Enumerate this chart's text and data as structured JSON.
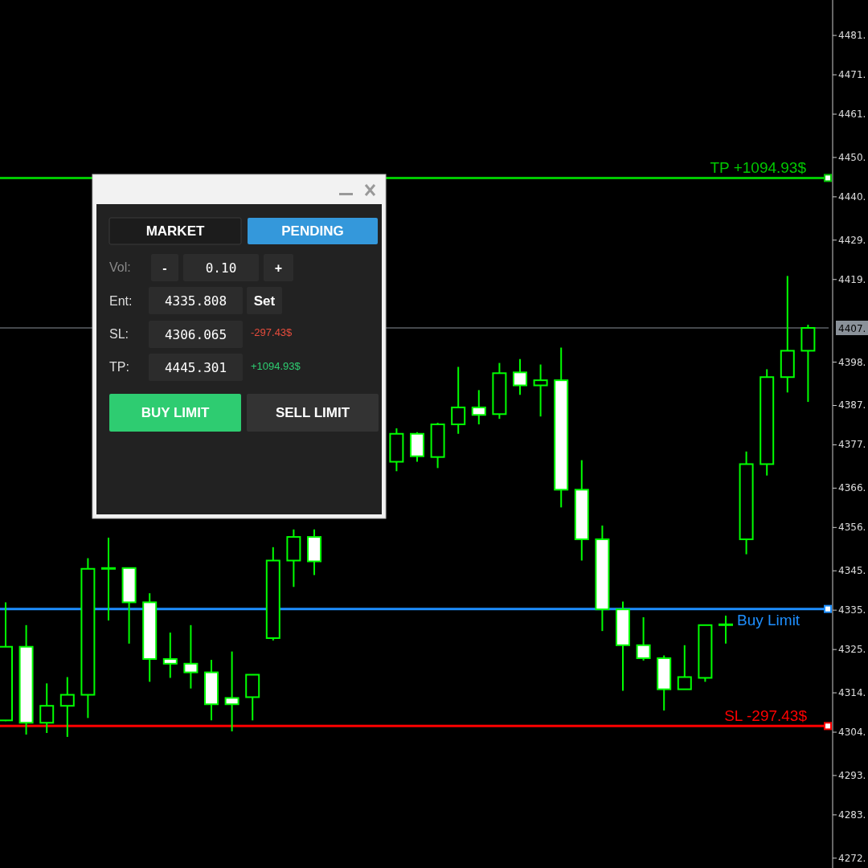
{
  "chart_data": [
    {
      "type": "candlestick",
      "categories": [
        null,
        null,
        null,
        null,
        null,
        null,
        null,
        null,
        null,
        null,
        null,
        null,
        null,
        null,
        null,
        null,
        null,
        null,
        null,
        null,
        null,
        null,
        null,
        null,
        null,
        null,
        null,
        null,
        null,
        null,
        null,
        null,
        null,
        null,
        null,
        null,
        null,
        null,
        null,
        null
      ],
      "ohlc": [
        [
          4307.5,
          4337.5,
          4307.3,
          4326.2
        ],
        [
          4326.2,
          4331.7,
          4303.9,
          4306.9
        ],
        [
          4306.9,
          4316.9,
          4304.3,
          4311.2
        ],
        [
          4311.2,
          4318.5,
          4303.3,
          4314.0
        ],
        [
          4314.0,
          4348.7,
          4308.1,
          4346.0
        ],
        [
          4346.0,
          4353.9,
          4332.9,
          4346.2
        ],
        [
          4346.2,
          4346.2,
          4327.0,
          4337.5
        ],
        [
          4337.5,
          4339.8,
          4317.3,
          4323.1
        ],
        [
          4323.1,
          4329.8,
          4318.3,
          4321.9
        ],
        [
          4321.9,
          4331.7,
          4315.6,
          4319.7
        ],
        [
          4319.7,
          4322.9,
          4307.5,
          4311.6
        ],
        [
          4313.2,
          4325.0,
          4304.7,
          4311.6
        ],
        [
          4313.4,
          4319.1,
          4307.5,
          4319.1
        ],
        [
          4328.4,
          4351.5,
          4327.8,
          4348.1
        ],
        [
          4348.1,
          4356.0,
          4341.4,
          4354.1
        ],
        [
          4354.1,
          4356.0,
          4344.4,
          4347.9
        ],
        null,
        null,
        null,
        [
          4373.2,
          4381.7,
          4370.8,
          4380.3
        ],
        [
          4380.3,
          4380.7,
          4373.2,
          4374.6
        ],
        [
          4374.4,
          4383.1,
          4371.6,
          4382.7
        ],
        [
          4382.7,
          4397.3,
          4380.3,
          4387.0
        ],
        [
          4387.0,
          4391.4,
          4382.7,
          4385.1
        ],
        [
          4385.3,
          4398.3,
          4384.1,
          4395.7
        ],
        [
          4395.9,
          4399.3,
          4390.2,
          4392.6
        ],
        [
          4392.6,
          4397.9,
          4384.7,
          4393.9
        ],
        [
          4393.9,
          4402.2,
          4361.6,
          4366.1
        ],
        [
          4366.1,
          4373.6,
          4348.1,
          4353.5
        ],
        [
          4353.5,
          4357.0,
          4330.2,
          4335.7
        ],
        [
          4335.7,
          4337.7,
          4315.0,
          4326.6
        ],
        [
          4326.6,
          4333.7,
          4322.7,
          4323.3
        ],
        [
          4323.3,
          4324.0,
          4310.0,
          4315.4
        ],
        [
          4315.4,
          4326.6,
          4315.4,
          4318.5
        ],
        [
          4318.3,
          4331.7,
          4317.3,
          4331.7
        ],
        [
          4331.7,
          4334.1,
          4327.0,
          4331.9
        ],
        [
          4353.5,
          4375.8,
          4349.7,
          4372.6
        ],
        [
          4372.6,
          4396.7,
          4369.7,
          4394.7
        ],
        [
          4394.7,
          4420.4,
          4390.8,
          4401.4
        ],
        [
          4401.4,
          4408.0,
          4388.4,
          4407.2
        ]
      ],
      "color": "#00ff00",
      "ylim": [
        4270.0,
        4490.5
      ],
      "yticks": [
        {
          "value": 4481.5,
          "label": "4481."
        },
        {
          "value": 4471.5,
          "label": "4471."
        },
        {
          "value": 4461.5,
          "label": "4461."
        },
        {
          "value": 4450.5,
          "label": "4450."
        },
        {
          "value": 4440.5,
          "label": "4440."
        },
        {
          "value": 4429.5,
          "label": "4429."
        },
        {
          "value": 4419.5,
          "label": "4419."
        },
        {
          "value": 4398.5,
          "label": "4398."
        },
        {
          "value": 4387.5,
          "label": "4387."
        },
        {
          "value": 4377.5,
          "label": "4377."
        },
        {
          "value": 4366.5,
          "label": "4366."
        },
        {
          "value": 4356.5,
          "label": "4356."
        },
        {
          "value": 4345.5,
          "label": "4345."
        },
        {
          "value": 4335.5,
          "label": "4335."
        },
        {
          "value": 4325.5,
          "label": "4325."
        },
        {
          "value": 4314.5,
          "label": "4314."
        },
        {
          "value": 4304.5,
          "label": "4304."
        },
        {
          "value": 4293.5,
          "label": "4293."
        },
        {
          "value": 4283.5,
          "label": "4283."
        },
        {
          "value": 4272.5,
          "label": "4272."
        }
      ],
      "tick_labels": "y",
      "grid": false,
      "ref_lines": [
        {
          "axis": "y",
          "value": 4445.301,
          "label": "TP +1094.93$",
          "color": "#00c800"
        },
        {
          "axis": "y",
          "value": 4407.2,
          "label": "4407.",
          "color": "#8a9199"
        },
        {
          "axis": "y",
          "value": 4335.808,
          "label": "Buy Limit",
          "color": "#1e8fff"
        },
        {
          "axis": "y",
          "value": 4306.065,
          "label": "SL -297.43$",
          "color": "#ff0000"
        }
      ]
    },
    {
      "type": "other",
      "annotations": [
        "MARKET",
        "PENDING",
        "Vol:",
        "-",
        "0.10",
        "+",
        "Ent:",
        "4335.808",
        "Set",
        "SL:",
        "4306.065",
        "-297.43$",
        "TP:",
        "4445.301",
        "+1094.93$",
        "BUY LIMIT",
        "SELL LIMIT"
      ]
    }
  ]
}
